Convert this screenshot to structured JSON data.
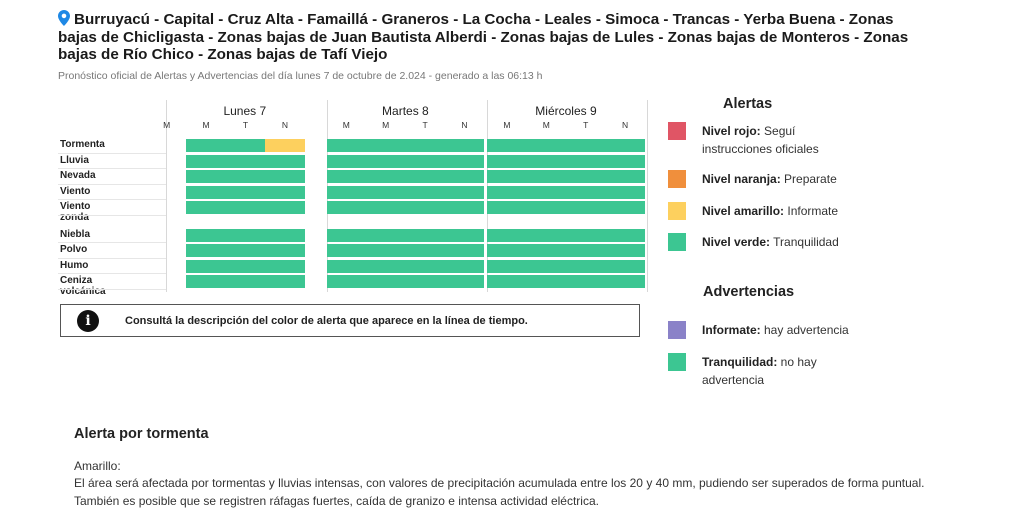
{
  "header": {
    "title": "Burruyacú - Capital - Cruz Alta - Famaillá - Graneros - La Cocha - Leales - Simoca - Trancas - Yerba Buena - Zonas bajas de Chicligasta - Zonas bajas de Juan Bautista Alberdi - Zonas bajas de Lules - Zonas bajas de Monteros - Zonas bajas de Río Chico - Zonas bajas de Tafí Viejo",
    "subtitle": "Pronóstico oficial de Alertas y Advertencias del día lunes 7 de octubre de 2.024 - generado a las 06:13 h",
    "icon": "map-pin-icon",
    "icon_color": "#1e88e5"
  },
  "timeline": {
    "colors": {
      "green": "#3cc692",
      "yellow": "#fdd05e"
    },
    "days": [
      {
        "name": "Lunes 7",
        "slots": [
          "M",
          "M",
          "T",
          "N"
        ]
      },
      {
        "name": "Martes 8",
        "slots": [
          "M",
          "M",
          "T",
          "N"
        ]
      },
      {
        "name": "Miércoles 9",
        "slots": [
          "M",
          "M",
          "T",
          "N"
        ]
      }
    ],
    "rows": [
      {
        "label": "Tormenta",
        "levels": [
          "none",
          "green",
          "green",
          "yellow",
          "green",
          "green",
          "green",
          "green",
          "green",
          "green",
          "green",
          "green"
        ]
      },
      {
        "label": "Lluvia",
        "levels": [
          "none",
          "green",
          "green",
          "green",
          "green",
          "green",
          "green",
          "green",
          "green",
          "green",
          "green",
          "green"
        ]
      },
      {
        "label": "Nevada",
        "levels": [
          "none",
          "green",
          "green",
          "green",
          "green",
          "green",
          "green",
          "green",
          "green",
          "green",
          "green",
          "green"
        ]
      },
      {
        "label": "Viento",
        "levels": [
          "none",
          "green",
          "green",
          "green",
          "green",
          "green",
          "green",
          "green",
          "green",
          "green",
          "green",
          "green"
        ]
      },
      {
        "label": "Viento zonda",
        "levels": [
          "none",
          "green",
          "green",
          "green",
          "green",
          "green",
          "green",
          "green",
          "green",
          "green",
          "green",
          "green"
        ]
      },
      {
        "label": "Niebla",
        "levels": [
          "none",
          "green",
          "green",
          "green",
          "green",
          "green",
          "green",
          "green",
          "green",
          "green",
          "green",
          "green"
        ]
      },
      {
        "label": "Polvo",
        "levels": [
          "none",
          "green",
          "green",
          "green",
          "green",
          "green",
          "green",
          "green",
          "green",
          "green",
          "green",
          "green"
        ]
      },
      {
        "label": "Humo",
        "levels": [
          "none",
          "green",
          "green",
          "green",
          "green",
          "green",
          "green",
          "green",
          "green",
          "green",
          "green",
          "green"
        ]
      },
      {
        "label": "Ceniza volcánica",
        "levels": [
          "none",
          "green",
          "green",
          "green",
          "green",
          "green",
          "green",
          "green",
          "green",
          "green",
          "green",
          "green"
        ]
      }
    ]
  },
  "info": {
    "icon": "info-icon",
    "glyph": "i",
    "text": "Consultá la descripción del color de alerta que aparece en la línea de tiempo."
  },
  "legend": {
    "alertas_title": "Alertas",
    "alertas": [
      {
        "bold": "Nivel rojo:",
        "text": " Seguí instrucciones oficiales",
        "color": "#e05565"
      },
      {
        "bold": "Nivel naranja:",
        "text": " Preparate",
        "color": "#f08f3c"
      },
      {
        "bold": "Nivel amarillo:",
        "text": " Informate",
        "color": "#fdd05e"
      },
      {
        "bold": "Nivel verde:",
        "text": " Tranquilidad",
        "color": "#3cc692"
      }
    ],
    "advertencias_title": "Advertencias",
    "advertencias": [
      {
        "bold": "Informate:",
        "text": " hay advertencia",
        "color": "#8a82c8"
      },
      {
        "bold": "Tranquilidad:",
        "text": " no hay advertencia",
        "color": "#3cc692"
      }
    ]
  },
  "storm": {
    "title": "Alerta por tormenta",
    "level": "Amarillo:",
    "description": "El área será afectada por tormentas y lluvias intensas, con valores de precipitación acumulada entre los 20 y 40 mm, pudiendo ser superados de forma puntual. También es posible que se registren ráfagas fuertes, caída de granizo e intensa actividad eléctrica."
  }
}
